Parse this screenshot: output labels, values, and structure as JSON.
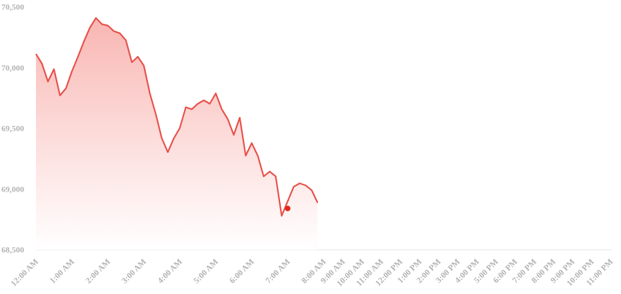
{
  "chart_data": {
    "type": "line",
    "x": [
      0,
      0.1667,
      0.3333,
      0.5,
      0.6667,
      0.8333,
      1,
      1.1667,
      1.3333,
      1.5,
      1.6667,
      1.8333,
      2,
      2.1667,
      2.3333,
      2.5,
      2.6667,
      2.8333,
      3,
      3.1667,
      3.3333,
      3.5,
      3.6667,
      3.8333,
      4,
      4.1667,
      4.3333,
      4.5,
      4.6667,
      4.8333,
      5,
      5.1667,
      5.3333,
      5.5,
      5.6667,
      5.8333,
      6,
      6.1667,
      6.3333,
      6.5,
      6.6667,
      6.8333,
      7.1667,
      7.3333,
      7.5,
      7.6667,
      7.8333
    ],
    "values": [
      70113,
      70033,
      69885,
      69987,
      69771,
      69828,
      69970,
      70090,
      70215,
      70329,
      70409,
      70358,
      70346,
      70300,
      70283,
      70226,
      70044,
      70090,
      70016,
      69788,
      69617,
      69417,
      69304,
      69417,
      69503,
      69674,
      69657,
      69702,
      69731,
      69702,
      69788,
      69657,
      69577,
      69446,
      69588,
      69275,
      69378,
      69275,
      69104,
      69144,
      69104,
      68779,
      69019,
      69047,
      69030,
      68990,
      68887
    ],
    "color": "#e8504a",
    "marker": {
      "x": 7.0,
      "value": 68840,
      "color": "#e0281f"
    },
    "ylim": [
      68500,
      70500
    ],
    "yticks": [
      {
        "value": 68500,
        "label": "68,500"
      },
      {
        "value": 69000,
        "label": "69,000"
      },
      {
        "value": 69500,
        "label": "69,500"
      },
      {
        "value": 70000,
        "label": "70,000"
      },
      {
        "value": 70500,
        "label": "70,500"
      }
    ],
    "xlim": [
      0,
      23
    ],
    "xticks": [
      {
        "value": 0,
        "label": "12:00 AM"
      },
      {
        "value": 1,
        "label": "1:00 AM"
      },
      {
        "value": 2,
        "label": "2:00 AM"
      },
      {
        "value": 3,
        "label": "3:00 AM"
      },
      {
        "value": 4,
        "label": "4:00 AM"
      },
      {
        "value": 5,
        "label": "5:00 AM"
      },
      {
        "value": 6,
        "label": "6:00 AM"
      },
      {
        "value": 7,
        "label": "7:00 AM"
      },
      {
        "value": 8,
        "label": "8:00 AM"
      },
      {
        "value": 9,
        "label": "9:00 AM"
      },
      {
        "value": 10,
        "label": "10:00 AM"
      },
      {
        "value": 11,
        "label": "11:00 AM"
      },
      {
        "value": 12,
        "label": "12:00 PM"
      },
      {
        "value": 13,
        "label": "1:00 PM"
      },
      {
        "value": 14,
        "label": "2:00 PM"
      },
      {
        "value": 15,
        "label": "3:00 PM"
      },
      {
        "value": 16,
        "label": "4:00 PM"
      },
      {
        "value": 17,
        "label": "5:00 PM"
      },
      {
        "value": 18,
        "label": "6:00 PM"
      },
      {
        "value": 19,
        "label": "7:00 PM"
      },
      {
        "value": 20,
        "label": "8:00 PM"
      },
      {
        "value": 21,
        "label": "9:00 PM"
      },
      {
        "value": 22,
        "label": "10:00 PM"
      },
      {
        "value": 23,
        "label": "11:00 PM"
      }
    ],
    "grid": false
  }
}
